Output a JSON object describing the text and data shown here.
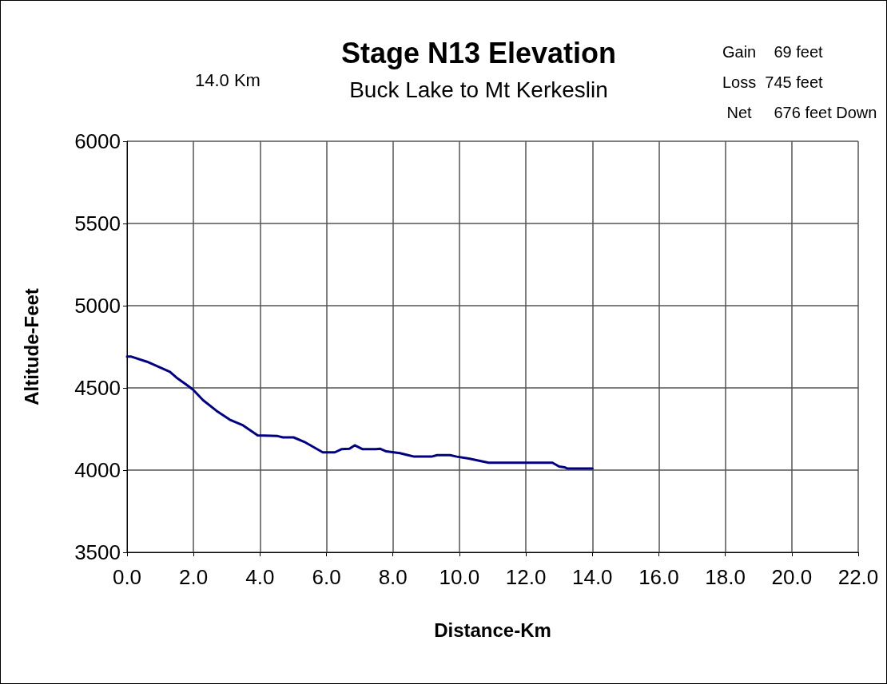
{
  "chart_data": {
    "type": "line",
    "title": "Stage N13 Elevation",
    "subtitle": "Buck Lake to Mt Kerkeslin",
    "xlabel": "Distance-Km",
    "ylabel": "Altitude-Feet",
    "annotations": [
      "14.0 Km",
      "Gain    69 feet",
      "Loss  745 feet",
      " Net     676 feet Down"
    ],
    "series": [
      {
        "color": "#000080",
        "x": [
          0,
          0.13,
          0.6,
          1.29,
          1.49,
          1.77,
          1.98,
          2.29,
          2.69,
          3.09,
          3.49,
          3.93,
          4.53,
          4.69,
          5.01,
          5.33,
          5.89,
          6.25,
          6.45,
          6.69,
          6.85,
          7.09,
          7.49,
          7.61,
          7.8,
          8.21,
          8.64,
          9.16,
          9.33,
          9.72,
          9.92,
          10.28,
          10.88,
          12.8,
          13.0,
          13.16,
          13.24,
          14.0
        ],
        "values": [
          4690,
          4690,
          4659,
          4598,
          4562,
          4522,
          4490,
          4425,
          4361,
          4307,
          4272,
          4211,
          4207,
          4199,
          4199,
          4172,
          4108,
          4108,
          4127,
          4130,
          4151,
          4127,
          4127,
          4130,
          4114,
          4103,
          4082,
          4082,
          4091,
          4091,
          4082,
          4070,
          4045,
          4045,
          4022,
          4017,
          4010,
          4010
        ]
      }
    ],
    "xlim": [
      0,
      22
    ],
    "xticks": [
      {
        "value": 0,
        "label": "0.0"
      },
      {
        "value": 2,
        "label": "2.0"
      },
      {
        "value": 4,
        "label": "4.0"
      },
      {
        "value": 6,
        "label": "6.0"
      },
      {
        "value": 8,
        "label": "8.0"
      },
      {
        "value": 10,
        "label": "10.0"
      },
      {
        "value": 12,
        "label": "12.0"
      },
      {
        "value": 14,
        "label": "14.0"
      },
      {
        "value": 16,
        "label": "16.0"
      },
      {
        "value": 18,
        "label": "18.0"
      },
      {
        "value": 20,
        "label": "20.0"
      },
      {
        "value": 22,
        "label": "22.0"
      }
    ],
    "ylim": [
      3500,
      6000
    ],
    "yticks": [
      3500,
      4000,
      4500,
      5000,
      5500,
      6000
    ],
    "grid": true,
    "marker": "none",
    "line_style": "solid"
  }
}
